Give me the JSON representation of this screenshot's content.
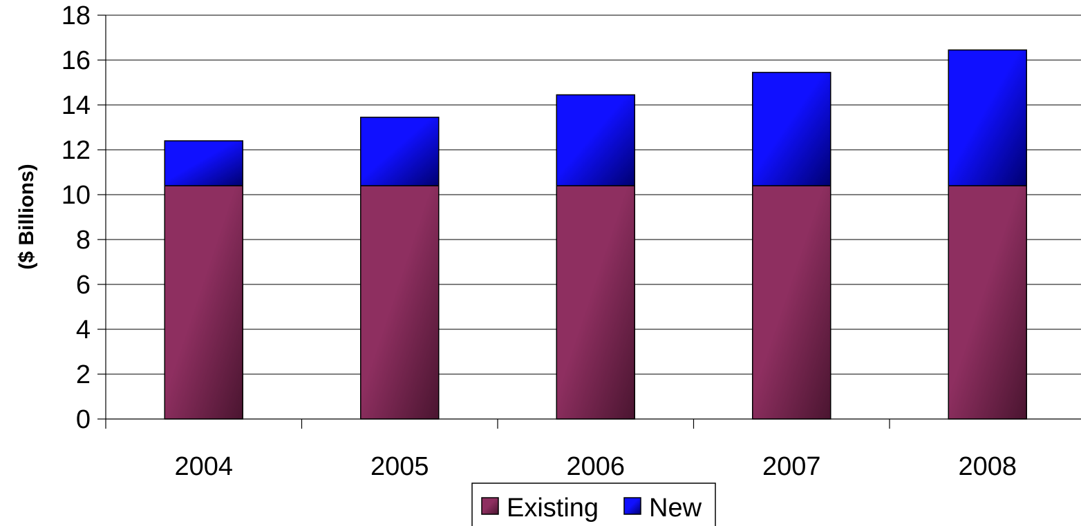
{
  "chart_data": {
    "type": "bar",
    "stacked": true,
    "title": "",
    "xlabel": "",
    "ylabel": "($ Billions)",
    "ylim": [
      0,
      18
    ],
    "yticks": [
      0,
      2,
      4,
      6,
      8,
      10,
      12,
      14,
      16,
      18
    ],
    "ytick_labels": [
      "0",
      "2",
      "4",
      "6",
      "8",
      "10",
      "12",
      "14",
      "16",
      "18"
    ],
    "categories": [
      "2004",
      "2005",
      "2006",
      "2007",
      "2008"
    ],
    "grid": true,
    "legend_position": "bottom",
    "series": [
      {
        "name": "Existing",
        "values": [
          10.4,
          10.4,
          10.4,
          10.4,
          10.4
        ],
        "color": "#8e2f60",
        "color_dark": "#4a1530"
      },
      {
        "name": "New",
        "values": [
          2.0,
          3.05,
          4.05,
          5.05,
          6.05
        ],
        "color": "#1010ff",
        "color_dark": "#000070"
      }
    ]
  }
}
